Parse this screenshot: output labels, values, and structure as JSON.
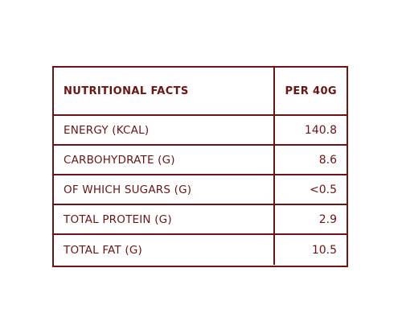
{
  "table": {
    "header": {
      "label": "NUTRITIONAL FACTS",
      "value": "PER 40G"
    },
    "rows": [
      {
        "label": "ENERGY (KCAL)",
        "value": "140.8"
      },
      {
        "label": "CARBOHYDRATE (G)",
        "value": "8.6"
      },
      {
        "label": "OF WHICH SUGARS (G)",
        "value": "<0.5"
      },
      {
        "label": "TOTAL PROTEIN (G)",
        "value": "2.9"
      },
      {
        "label": "TOTAL FAT (G)",
        "value": "10.5"
      }
    ],
    "colors": {
      "border": "#6b1414",
      "text": "#6b1414",
      "background": "#ffffff"
    }
  }
}
